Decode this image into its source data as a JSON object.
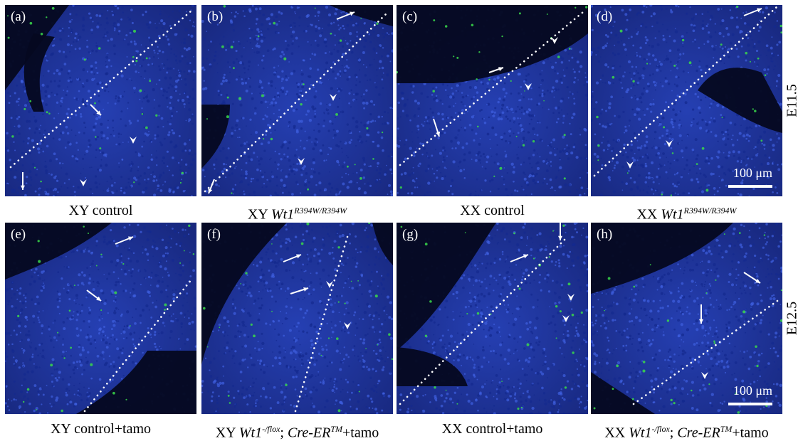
{
  "panels": [
    {
      "label": "(a)",
      "caption_main": "XY control",
      "sup": "",
      "suffix": ""
    },
    {
      "label": "(b)",
      "caption_main": "XY ",
      "gene": "Wt1",
      "sup": "R394W/R394W",
      "suffix": ""
    },
    {
      "label": "(c)",
      "caption_main": "XX control",
      "sup": "",
      "suffix": ""
    },
    {
      "label": "(d)",
      "caption_main": "XX ",
      "gene": "Wt1",
      "sup": "R394W/R394W",
      "suffix": "",
      "scale": "100 μm"
    },
    {
      "label": "(e)",
      "caption_main": "XY control+tamo",
      "sup": "",
      "suffix": ""
    },
    {
      "label": "(f)",
      "caption_main": "XY ",
      "gene": "Wt1",
      "sup": "-/flox",
      "sep": "; ",
      "cre": "Cre-ER",
      "cre_sup": "TM",
      "suffix": "+tamo"
    },
    {
      "label": "(g)",
      "caption_main": "XX control+tamo",
      "sup": "",
      "suffix": ""
    },
    {
      "label": "(h)",
      "caption_main": "XX ",
      "gene": "Wt1",
      "sup": "-/flox",
      "sep": "; ",
      "cre": "Cre-ER",
      "cre_sup": "TM",
      "suffix": "+tamo",
      "scale": "100 μm"
    }
  ],
  "stages": {
    "row1": "E11.5",
    "row2": "E12.5"
  },
  "colors": {
    "nuclei": "#2038b8",
    "signal": "#39d84a",
    "background": "#0a0f3a",
    "overlay": "#ffffff"
  }
}
